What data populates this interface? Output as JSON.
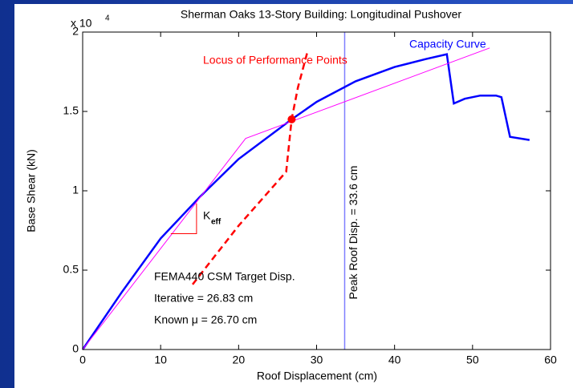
{
  "chart_data": {
    "type": "line",
    "title": "Sherman Oaks 13-Story Building: Longitudinal Pushover",
    "x_label": "Roof Displacement (cm)",
    "y_label": "Base Shear (kN)",
    "y_multiplier": {
      "base": "x 10",
      "exponent": "4"
    },
    "xlim": [
      0,
      60
    ],
    "xticks": [
      0,
      10,
      20,
      30,
      40,
      50,
      60
    ],
    "ylim": [
      0,
      2
    ],
    "yticks": [
      0,
      0.5,
      1,
      1.5,
      2
    ],
    "series": [
      {
        "name": "Capacity Curve",
        "color": "#0000ff",
        "style": "solid",
        "x": [
          0,
          5,
          10,
          15,
          20,
          26.8,
          30,
          35,
          40,
          44,
          46.7,
          47.6,
          49,
          51,
          53,
          53.7,
          54.8,
          57.3
        ],
        "values": [
          0,
          0.36,
          0.7,
          0.96,
          1.2,
          1.45,
          1.56,
          1.69,
          1.78,
          1.83,
          1.86,
          1.55,
          1.58,
          1.6,
          1.6,
          1.59,
          1.34,
          1.32
        ]
      },
      {
        "color": "#ff00ff",
        "style": "thin",
        "x": [
          0,
          20.9,
          52.2
        ],
        "values": [
          0,
          1.33,
          1.9
        ]
      },
      {
        "name": "Locus of Performance Points",
        "color": "#ff0000",
        "style": "dashed",
        "x": [
          14.1,
          20,
          26.1,
          26.8,
          27.6,
          28.8
        ],
        "values": [
          0.41,
          0.78,
          1.12,
          1.45,
          1.65,
          1.87
        ]
      }
    ],
    "performance_point": {
      "x": 26.8,
      "y": 1.45,
      "color": "#ff0000"
    },
    "vline": {
      "x": 33.6,
      "color": "#7f7fff",
      "label": "Peak Roof Disp. = 33.6 cm"
    },
    "slope_triangle": {
      "x": [
        11.3,
        14.6,
        14.6
      ],
      "y": [
        0.73,
        0.73,
        0.92
      ],
      "color": "#ff0000",
      "label": {
        "main": "K",
        "sub": "eff"
      }
    },
    "annotations": [
      "FEMA440 CSM Target Disp.",
      "Iterative = 26.83 cm",
      "Known μ = 26.70 cm"
    ]
  }
}
